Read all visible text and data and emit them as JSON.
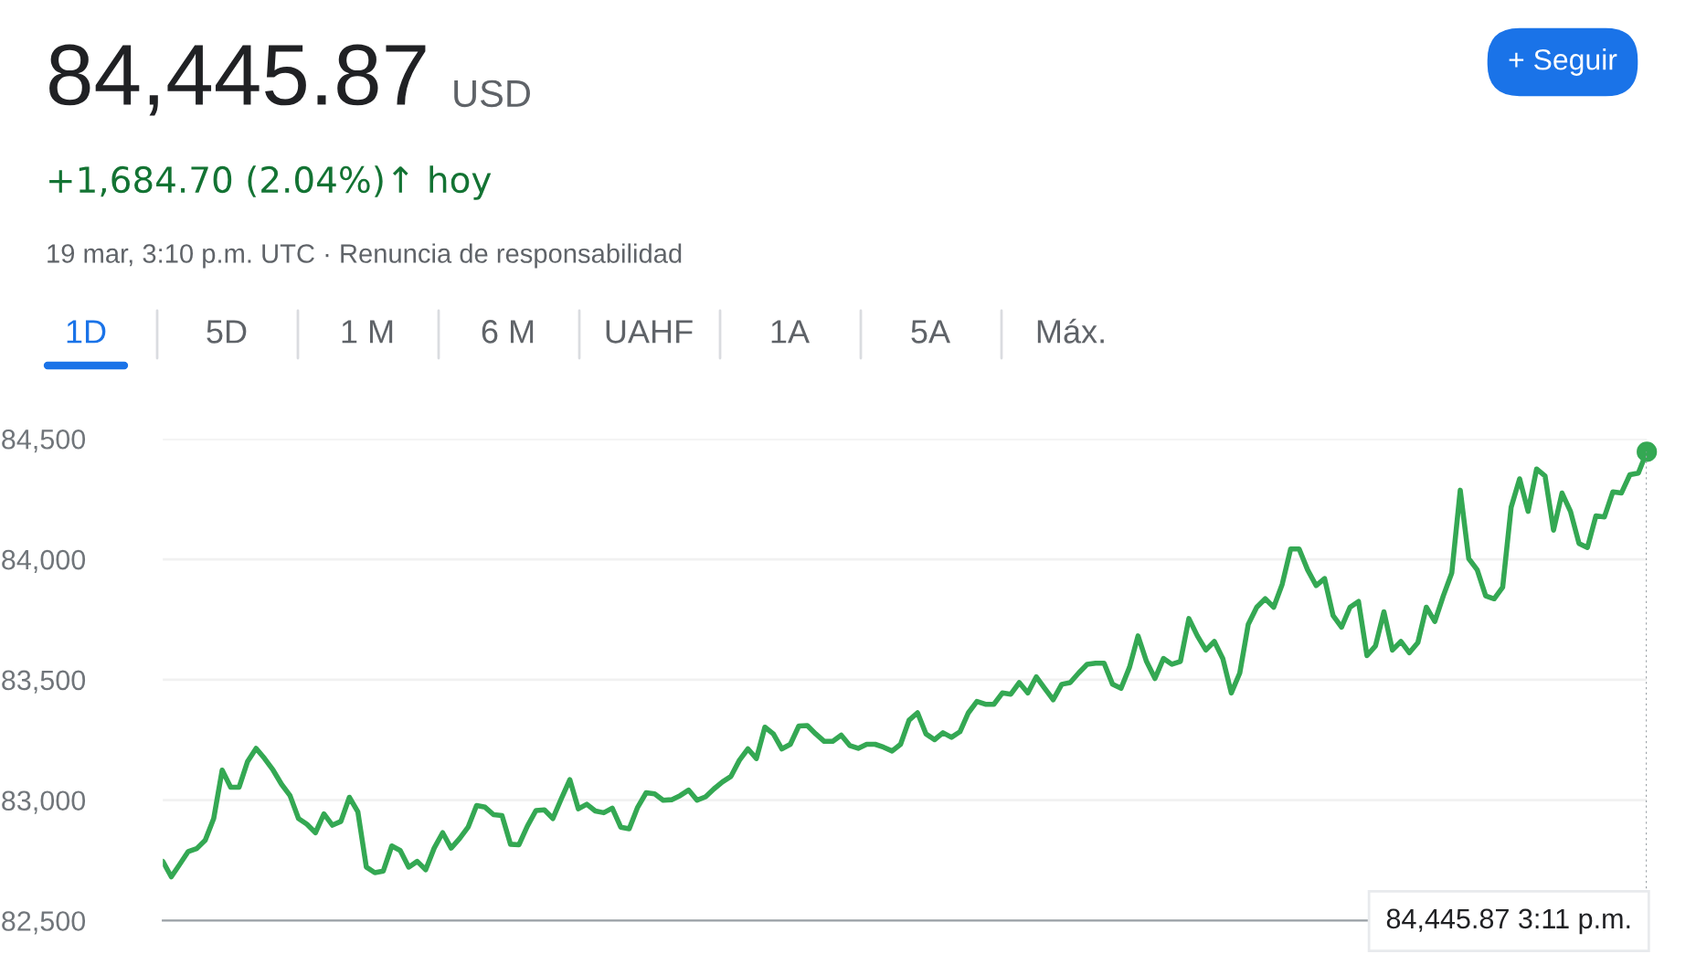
{
  "chart_data": {
    "type": "line",
    "title": "84,445.87",
    "subtitle": "USD",
    "annotations": [
      "+1,684.70 (2.04%)↑ hoy",
      "19 mar, 3:10 p.m. UTC · Renuncia de responsabilidad",
      "1D",
      "5D",
      "1 M",
      "6 M",
      "UAHF",
      "1A",
      "5A",
      "Máx.",
      "+ Seguir",
      "84,445.87 3:11 p.m."
    ],
    "categories": [
      null,
      null,
      null,
      null,
      null,
      null,
      null,
      null,
      null,
      null,
      null,
      null,
      null,
      null,
      null,
      null,
      null,
      null,
      null,
      null,
      null,
      null,
      null,
      null,
      null,
      null,
      null,
      null,
      null,
      null,
      null,
      null,
      null,
      null,
      null,
      null,
      null,
      null,
      null,
      null,
      null,
      null,
      null,
      null,
      null,
      null,
      null,
      null,
      null,
      null,
      null,
      null,
      null,
      null,
      null,
      null,
      null,
      null,
      null,
      null,
      null,
      null,
      null,
      null,
      null,
      null,
      null,
      null,
      null,
      null,
      null,
      null,
      null,
      null,
      null,
      null,
      null,
      null,
      null,
      null,
      null,
      null,
      null,
      null,
      null,
      null,
      null,
      null,
      null,
      null,
      null,
      null,
      null,
      null,
      null,
      null,
      null,
      null,
      null,
      null,
      null,
      null,
      null,
      null,
      null,
      null,
      null,
      null,
      null,
      null,
      null,
      null,
      null,
      null,
      null,
      null,
      null,
      null,
      null,
      null,
      null,
      null,
      null,
      null,
      null,
      null,
      null,
      null,
      null,
      null,
      null,
      null,
      null,
      null,
      null,
      null,
      null,
      null,
      null,
      null,
      null,
      null,
      null,
      null,
      null,
      null,
      null,
      null,
      null,
      null,
      null,
      null,
      null,
      null,
      null,
      null,
      null,
      null,
      null,
      null,
      null,
      null,
      null,
      null,
      null,
      null,
      null,
      null,
      null,
      null,
      null,
      null,
      null,
      null,
      null,
      null
    ],
    "series": [
      {
        "color": "#34a853",
        "values": [
          82746,
          82682,
          82734,
          82787,
          82799,
          82834,
          82924,
          83125,
          83054,
          83054,
          83161,
          83215,
          83173,
          83125,
          83066,
          83019,
          82924,
          82900,
          82865,
          82943,
          82896,
          82912,
          83012,
          82952,
          82722,
          82699,
          82706,
          82810,
          82791,
          82722,
          82746,
          82711,
          82801,
          82865,
          82801,
          82841,
          82888,
          82978,
          82971,
          82940,
          82936,
          82817,
          82815,
          82893,
          82957,
          82960,
          82924,
          83007,
          83085,
          82964,
          82983,
          82955,
          82948,
          82967,
          82888,
          82881,
          82971,
          83031,
          83026,
          83000,
          83002,
          83019,
          83042,
          83000,
          83014,
          83047,
          83076,
          83099,
          83166,
          83213,
          83173,
          83303,
          83275,
          83213,
          83232,
          83308,
          83310,
          83275,
          83244,
          83244,
          83270,
          83227,
          83215,
          83232,
          83232,
          83220,
          83204,
          83232,
          83332,
          83363,
          83275,
          83251,
          83280,
          83261,
          83284,
          83363,
          83410,
          83398,
          83398,
          83445,
          83440,
          83488,
          83445,
          83512,
          83464,
          83417,
          83481,
          83488,
          83528,
          83564,
          83569,
          83569,
          83481,
          83464,
          83552,
          83682,
          83576,
          83505,
          83588,
          83564,
          83576,
          83754,
          83682,
          83623,
          83659,
          83588,
          83445,
          83528,
          83730,
          83801,
          83836,
          83801,
          83896,
          84043,
          84043,
          83956,
          83891,
          83920,
          83766,
          83718,
          83801,
          83825,
          83600,
          83640,
          83782,
          83623,
          83659,
          83612,
          83654,
          83801,
          83742,
          83848,
          83943,
          84287,
          84003,
          83956,
          83848,
          83836,
          83884,
          84216,
          84334,
          84199,
          84375,
          84346,
          84121,
          84275,
          84199,
          84066,
          84049,
          84180,
          84176,
          84280,
          84275,
          84351,
          84358,
          84446
        ]
      }
    ],
    "ylim": [
      82500,
      84500
    ],
    "yticks": [
      {
        "value": 82500,
        "label": "82,500"
      },
      {
        "value": 83000,
        "label": "83,000"
      },
      {
        "value": 83500,
        "label": "83,500"
      },
      {
        "value": 84000,
        "label": "84,000"
      },
      {
        "value": 84500,
        "label": "84,500"
      }
    ],
    "grid": "y",
    "line_style": "solid"
  }
}
